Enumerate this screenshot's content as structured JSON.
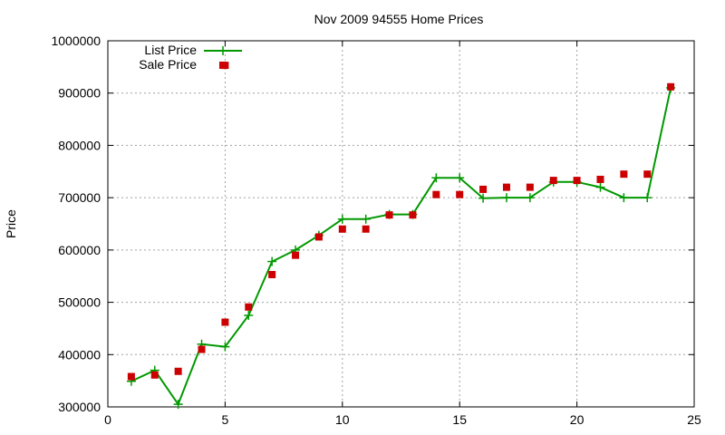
{
  "chart_data": {
    "type": "line",
    "title": "Nov 2009 94555 Home Prices",
    "xlabel": "",
    "ylabel": "Price",
    "xlim": [
      0,
      25
    ],
    "ylim": [
      300000,
      1000000
    ],
    "x_ticks": [
      0,
      5,
      10,
      15,
      20,
      25
    ],
    "y_ticks": [
      300000,
      400000,
      500000,
      600000,
      700000,
      800000,
      900000,
      1000000
    ],
    "x_tick_labels": [
      "0",
      "5",
      "10",
      "15",
      "20",
      "25"
    ],
    "y_tick_labels": [
      "300000",
      "400000",
      "500000",
      "600000",
      "700000",
      "800000",
      "900000",
      "1000000"
    ],
    "grid": true,
    "legend_position": "top-left",
    "series": [
      {
        "name": "List Price",
        "style": "line+plus",
        "color": "#009900",
        "x": [
          1,
          2,
          3,
          4,
          5,
          6,
          7,
          8,
          9,
          10,
          11,
          12,
          13,
          14,
          15,
          16,
          17,
          18,
          19,
          20,
          21,
          22,
          23,
          24
        ],
        "values": [
          349000,
          370000,
          305000,
          420000,
          415000,
          475000,
          578000,
          600000,
          628000,
          659000,
          659000,
          668000,
          668000,
          738000,
          738000,
          699000,
          700000,
          700000,
          730000,
          730000,
          720000,
          700000,
          700000,
          910000
        ]
      },
      {
        "name": "Sale Price",
        "style": "square",
        "color": "#cc0000",
        "x": [
          1,
          2,
          3,
          4,
          5,
          5,
          6,
          7,
          8,
          9,
          10,
          11,
          12,
          13,
          14,
          15,
          16,
          17,
          18,
          19,
          20,
          21,
          22,
          23,
          24
        ],
        "values": [
          358000,
          361000,
          368000,
          410000,
          953000,
          462000,
          491000,
          553000,
          590000,
          625000,
          640000,
          640000,
          667000,
          667000,
          706000,
          706000,
          716000,
          720000,
          720000,
          733000,
          733000,
          735000,
          745000,
          745000,
          912000
        ]
      }
    ]
  }
}
